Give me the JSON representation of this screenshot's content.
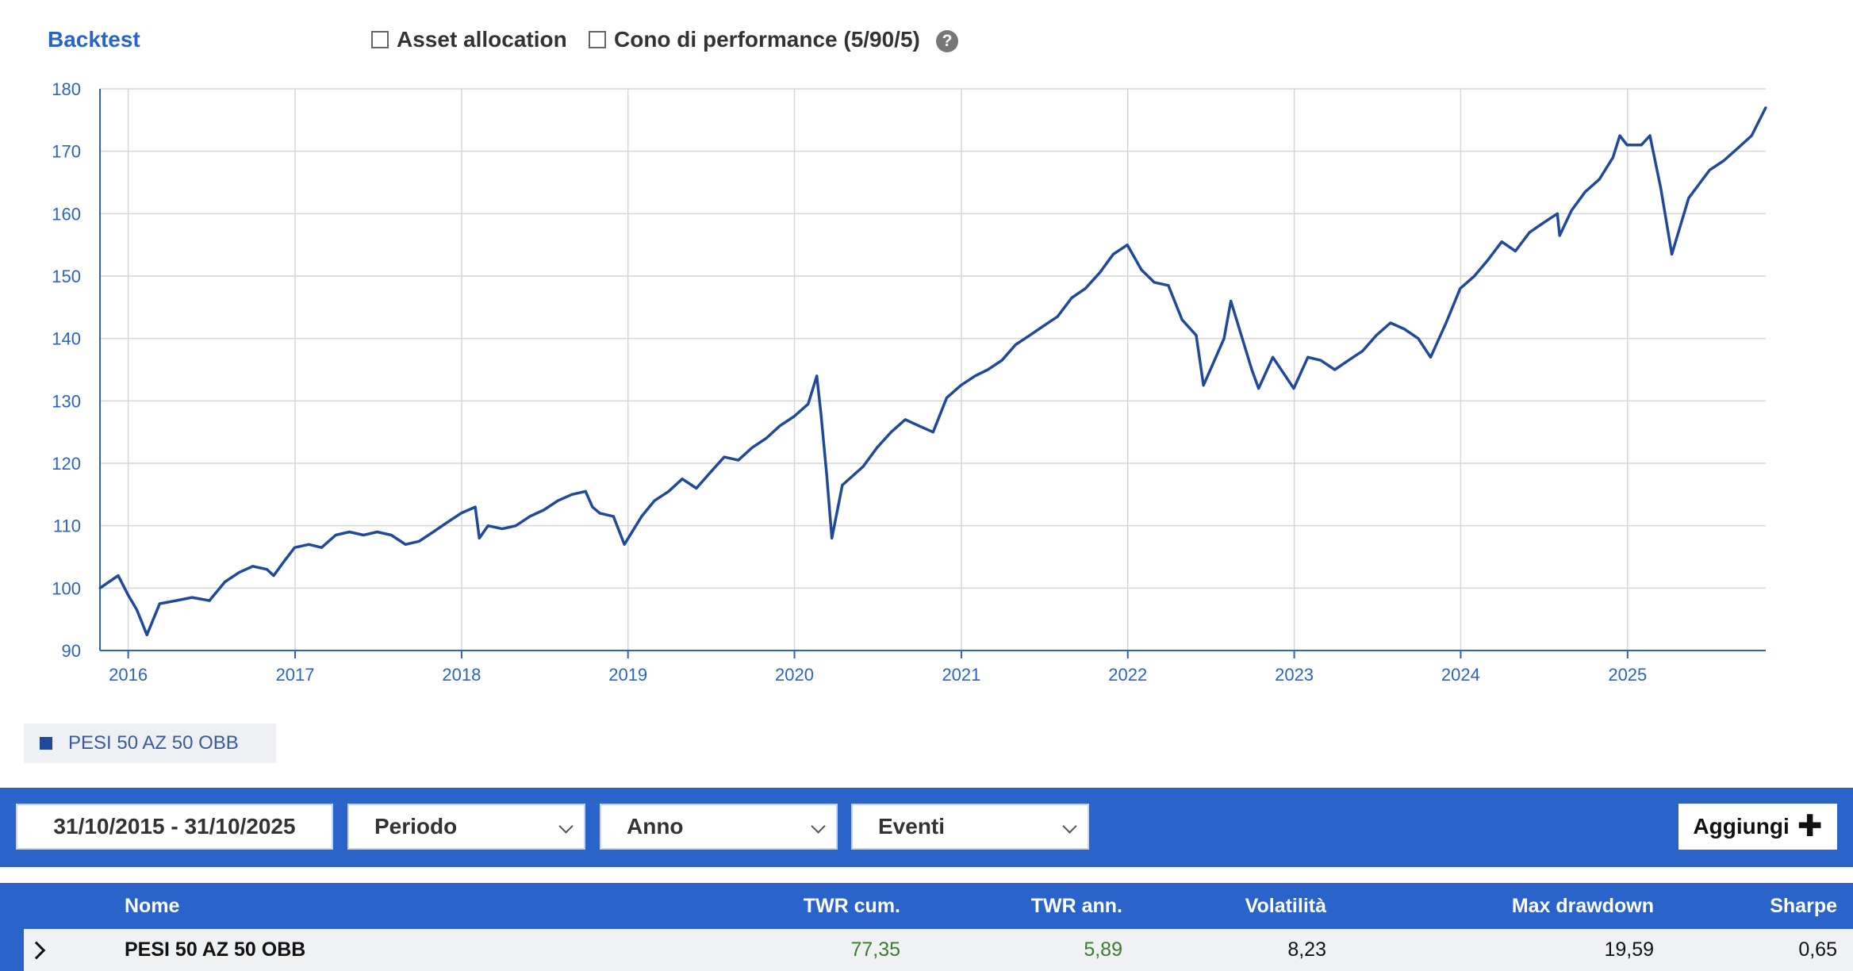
{
  "header": {
    "title": "Backtest",
    "options": [
      {
        "label": "Asset allocation",
        "checked": false
      },
      {
        "label": "Cono di performance (5/90/5)",
        "checked": false
      }
    ],
    "help_icon": "question-circle-icon"
  },
  "chart_data": {
    "type": "line",
    "title": "",
    "xlabel": "",
    "ylabel": "",
    "ylim": [
      90,
      180
    ],
    "yticks": [
      90,
      100,
      110,
      120,
      130,
      140,
      150,
      160,
      170,
      180
    ],
    "xlim": [
      "2015-10-31",
      "2025-10-31"
    ],
    "xticks": [
      "2016",
      "2017",
      "2018",
      "2019",
      "2020",
      "2021",
      "2022",
      "2023",
      "2024",
      "2025"
    ],
    "grid": true,
    "legend_position": "bottom-left",
    "series": [
      {
        "name": "PESI 50 AZ 50 OBB",
        "color": "#1f4a9c",
        "points": [
          [
            "2015-10-31",
            100.0
          ],
          [
            "2015-11-30",
            101.5
          ],
          [
            "2015-12-10",
            102.0
          ],
          [
            "2015-12-31",
            99.0
          ],
          [
            "2016-01-20",
            96.5
          ],
          [
            "2016-02-11",
            92.5
          ],
          [
            "2016-03-10",
            97.5
          ],
          [
            "2016-04-15",
            98.0
          ],
          [
            "2016-05-20",
            98.5
          ],
          [
            "2016-06-27",
            98.0
          ],
          [
            "2016-07-31",
            101.0
          ],
          [
            "2016-08-31",
            102.5
          ],
          [
            "2016-09-30",
            103.5
          ],
          [
            "2016-10-31",
            103.0
          ],
          [
            "2016-11-15",
            102.0
          ],
          [
            "2016-12-10",
            104.5
          ],
          [
            "2016-12-31",
            106.5
          ],
          [
            "2017-01-31",
            107.0
          ],
          [
            "2017-02-28",
            106.5
          ],
          [
            "2017-03-31",
            108.5
          ],
          [
            "2017-04-30",
            109.0
          ],
          [
            "2017-05-31",
            108.5
          ],
          [
            "2017-06-30",
            109.0
          ],
          [
            "2017-07-31",
            108.5
          ],
          [
            "2017-08-31",
            107.0
          ],
          [
            "2017-09-30",
            107.5
          ],
          [
            "2017-10-31",
            109.0
          ],
          [
            "2017-11-30",
            110.5
          ],
          [
            "2017-12-31",
            112.0
          ],
          [
            "2018-01-31",
            113.0
          ],
          [
            "2018-02-09",
            108.0
          ],
          [
            "2018-02-28",
            110.0
          ],
          [
            "2018-03-31",
            109.5
          ],
          [
            "2018-04-30",
            110.0
          ],
          [
            "2018-05-31",
            111.5
          ],
          [
            "2018-06-30",
            112.5
          ],
          [
            "2018-07-31",
            114.0
          ],
          [
            "2018-08-31",
            115.0
          ],
          [
            "2018-09-30",
            115.5
          ],
          [
            "2018-10-15",
            113.0
          ],
          [
            "2018-10-31",
            112.0
          ],
          [
            "2018-11-30",
            111.5
          ],
          [
            "2018-12-24",
            107.0
          ],
          [
            "2019-01-31",
            111.5
          ],
          [
            "2019-02-28",
            114.0
          ],
          [
            "2019-03-31",
            115.5
          ],
          [
            "2019-04-30",
            117.5
          ],
          [
            "2019-05-31",
            116.0
          ],
          [
            "2019-06-30",
            118.5
          ],
          [
            "2019-07-31",
            121.0
          ],
          [
            "2019-08-31",
            120.5
          ],
          [
            "2019-09-30",
            122.5
          ],
          [
            "2019-10-31",
            124.0
          ],
          [
            "2019-11-30",
            126.0
          ],
          [
            "2019-12-31",
            127.5
          ],
          [
            "2020-01-31",
            129.5
          ],
          [
            "2020-02-19",
            134.0
          ],
          [
            "2020-02-28",
            128.0
          ],
          [
            "2020-03-12",
            118.0
          ],
          [
            "2020-03-23",
            108.0
          ],
          [
            "2020-04-15",
            116.5
          ],
          [
            "2020-05-31",
            119.5
          ],
          [
            "2020-06-30",
            122.5
          ],
          [
            "2020-07-31",
            125.0
          ],
          [
            "2020-08-31",
            127.0
          ],
          [
            "2020-09-30",
            126.0
          ],
          [
            "2020-10-31",
            125.0
          ],
          [
            "2020-11-30",
            130.5
          ],
          [
            "2020-12-31",
            132.5
          ],
          [
            "2021-01-31",
            134.0
          ],
          [
            "2021-02-28",
            135.0
          ],
          [
            "2021-03-31",
            136.5
          ],
          [
            "2021-04-30",
            139.0
          ],
          [
            "2021-05-31",
            140.5
          ],
          [
            "2021-06-30",
            142.0
          ],
          [
            "2021-07-31",
            143.5
          ],
          [
            "2021-08-31",
            146.5
          ],
          [
            "2021-09-30",
            148.0
          ],
          [
            "2021-10-31",
            150.5
          ],
          [
            "2021-11-30",
            153.5
          ],
          [
            "2021-12-31",
            155.0
          ],
          [
            "2022-01-31",
            151.0
          ],
          [
            "2022-02-28",
            149.0
          ],
          [
            "2022-03-31",
            148.5
          ],
          [
            "2022-04-30",
            143.0
          ],
          [
            "2022-05-31",
            140.5
          ],
          [
            "2022-06-16",
            132.5
          ],
          [
            "2022-07-31",
            140.0
          ],
          [
            "2022-08-15",
            146.0
          ],
          [
            "2022-09-30",
            135.0
          ],
          [
            "2022-10-15",
            132.0
          ],
          [
            "2022-11-15",
            137.0
          ],
          [
            "2022-12-31",
            132.0
          ],
          [
            "2023-01-31",
            137.0
          ],
          [
            "2023-02-28",
            136.5
          ],
          [
            "2023-03-31",
            135.0
          ],
          [
            "2023-04-30",
            136.5
          ],
          [
            "2023-05-31",
            138.0
          ],
          [
            "2023-06-30",
            140.5
          ],
          [
            "2023-07-31",
            142.5
          ],
          [
            "2023-08-31",
            141.5
          ],
          [
            "2023-09-30",
            140.0
          ],
          [
            "2023-10-27",
            137.0
          ],
          [
            "2023-11-30",
            142.5
          ],
          [
            "2023-12-31",
            148.0
          ],
          [
            "2024-01-31",
            150.0
          ],
          [
            "2024-02-29",
            152.5
          ],
          [
            "2024-03-31",
            155.5
          ],
          [
            "2024-04-30",
            154.0
          ],
          [
            "2024-05-31",
            157.0
          ],
          [
            "2024-06-30",
            158.5
          ],
          [
            "2024-07-31",
            160.0
          ],
          [
            "2024-08-05",
            156.5
          ],
          [
            "2024-08-31",
            160.5
          ],
          [
            "2024-09-30",
            163.5
          ],
          [
            "2024-10-31",
            165.5
          ],
          [
            "2024-11-30",
            169.0
          ],
          [
            "2024-12-15",
            172.5
          ],
          [
            "2024-12-31",
            171.0
          ],
          [
            "2025-01-31",
            171.0
          ],
          [
            "2025-02-19",
            172.5
          ],
          [
            "2025-03-15",
            164.0
          ],
          [
            "2025-04-08",
            153.5
          ],
          [
            "2025-05-15",
            162.5
          ],
          [
            "2025-06-30",
            167.0
          ],
          [
            "2025-07-31",
            168.5
          ],
          [
            "2025-08-31",
            170.5
          ],
          [
            "2025-09-30",
            172.5
          ],
          [
            "2025-10-31",
            177.0
          ]
        ]
      }
    ]
  },
  "legend": {
    "label": "PESI 50 AZ 50 OBB",
    "color": "#1f4a9c"
  },
  "controls": {
    "date_range": "31/10/2015 - 31/10/2025",
    "periodo": "Periodo",
    "anno": "Anno",
    "eventi": "Eventi",
    "add_label": "Aggiungi"
  },
  "table": {
    "columns": {
      "nome": "Nome",
      "twr_cum": "TWR cum.",
      "twr_ann": "TWR ann.",
      "volatilita": "Volatilità",
      "max_drawdown": "Max drawdown",
      "sharpe": "Sharpe"
    },
    "rows": [
      {
        "nome": "PESI 50 AZ 50 OBB",
        "twr_cum": "77,35",
        "twr_ann": "5,89",
        "volatilita": "8,23",
        "max_drawdown": "19,59",
        "sharpe": "0,65"
      }
    ]
  }
}
